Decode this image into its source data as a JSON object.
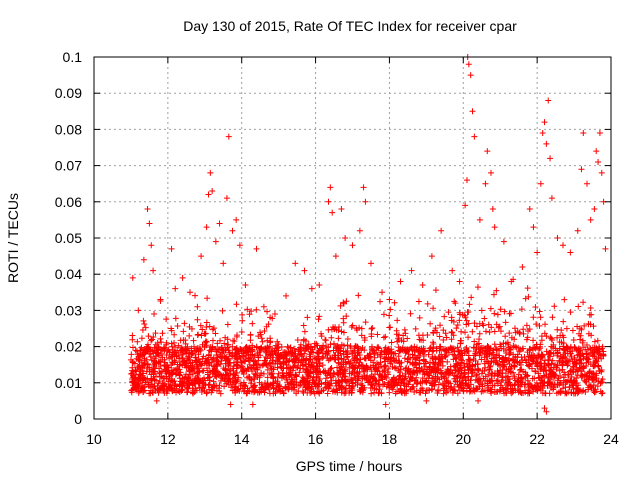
{
  "chart_data": {
    "type": "scatter",
    "title": "Day 130 of 2015, Rate Of TEC Index for receiver cpar",
    "xlabel": "GPS time / hours",
    "ylabel": "ROTI / TECUs",
    "xlim": [
      10,
      24
    ],
    "ylim": [
      0,
      0.1
    ],
    "x_ticks": [
      10,
      12,
      14,
      16,
      18,
      20,
      22,
      24
    ],
    "x_tick_labels": [
      "10",
      "12",
      "14",
      "16",
      "18",
      "20",
      "22",
      "24"
    ],
    "y_ticks": [
      0,
      0.01,
      0.02,
      0.03,
      0.04,
      0.05,
      0.06,
      0.07,
      0.08,
      0.09,
      0.1
    ],
    "y_tick_labels": [
      "0",
      "0.01",
      "0.02",
      "0.03",
      "0.04",
      "0.05",
      "0.06",
      "0.07",
      "0.08",
      "0.09",
      "0.1"
    ],
    "grid": true,
    "marker": "plus",
    "marker_color": "#ff0000",
    "series": [
      {
        "name": "ROTI",
        "points": [
          [
            11.05,
            0.039
          ],
          [
            11.2,
            0.03
          ],
          [
            11.35,
            0.044
          ],
          [
            11.45,
            0.058
          ],
          [
            11.5,
            0.054
          ],
          [
            11.55,
            0.048
          ],
          [
            11.6,
            0.041
          ],
          [
            11.8,
            0.033
          ],
          [
            12.1,
            0.047
          ],
          [
            12.2,
            0.036
          ],
          [
            12.4,
            0.039
          ],
          [
            12.6,
            0.035
          ],
          [
            12.8,
            0.031
          ],
          [
            12.9,
            0.045
          ],
          [
            13.05,
            0.053
          ],
          [
            13.1,
            0.062
          ],
          [
            13.15,
            0.068
          ],
          [
            13.2,
            0.063
          ],
          [
            13.3,
            0.049
          ],
          [
            13.4,
            0.054
          ],
          [
            13.5,
            0.043
          ],
          [
            13.6,
            0.061
          ],
          [
            13.65,
            0.078
          ],
          [
            13.75,
            0.052
          ],
          [
            13.85,
            0.055
          ],
          [
            13.95,
            0.048
          ],
          [
            14.1,
            0.037
          ],
          [
            14.4,
            0.047
          ],
          [
            14.6,
            0.031
          ],
          [
            14.9,
            0.029
          ],
          [
            15.2,
            0.034
          ],
          [
            15.45,
            0.043
          ],
          [
            15.7,
            0.041
          ],
          [
            15.9,
            0.036
          ],
          [
            16.1,
            0.037
          ],
          [
            16.35,
            0.06
          ],
          [
            16.4,
            0.064
          ],
          [
            16.45,
            0.057
          ],
          [
            16.55,
            0.045
          ],
          [
            16.7,
            0.058
          ],
          [
            16.8,
            0.05
          ],
          [
            17.0,
            0.048
          ],
          [
            17.2,
            0.052
          ],
          [
            17.3,
            0.064
          ],
          [
            17.35,
            0.06
          ],
          [
            17.5,
            0.043
          ],
          [
            17.8,
            0.035
          ],
          [
            18.0,
            0.033
          ],
          [
            18.3,
            0.038
          ],
          [
            18.6,
            0.041
          ],
          [
            18.9,
            0.037
          ],
          [
            19.15,
            0.045
          ],
          [
            19.4,
            0.052
          ],
          [
            19.7,
            0.041
          ],
          [
            19.9,
            0.038
          ],
          [
            20.05,
            0.059
          ],
          [
            20.1,
            0.066
          ],
          [
            20.12,
            0.1
          ],
          [
            20.15,
            0.098
          ],
          [
            20.2,
            0.095
          ],
          [
            20.25,
            0.085
          ],
          [
            20.3,
            0.078
          ],
          [
            20.45,
            0.055
          ],
          [
            20.6,
            0.065
          ],
          [
            20.65,
            0.074
          ],
          [
            20.75,
            0.068
          ],
          [
            20.8,
            0.058
          ],
          [
            20.85,
            0.053
          ],
          [
            21.1,
            0.049
          ],
          [
            21.3,
            0.038
          ],
          [
            21.6,
            0.042
          ],
          [
            21.8,
            0.058
          ],
          [
            21.9,
            0.053
          ],
          [
            22.0,
            0.046
          ],
          [
            22.1,
            0.065
          ],
          [
            22.15,
            0.079
          ],
          [
            22.2,
            0.082
          ],
          [
            22.25,
            0.076
          ],
          [
            22.3,
            0.088
          ],
          [
            22.35,
            0.072
          ],
          [
            22.4,
            0.061
          ],
          [
            22.55,
            0.05
          ],
          [
            22.7,
            0.048
          ],
          [
            22.9,
            0.046
          ],
          [
            23.1,
            0.052
          ],
          [
            23.2,
            0.069
          ],
          [
            23.25,
            0.079
          ],
          [
            23.35,
            0.065
          ],
          [
            23.45,
            0.055
          ],
          [
            23.55,
            0.058
          ],
          [
            23.6,
            0.074
          ],
          [
            23.65,
            0.071
          ],
          [
            23.7,
            0.079
          ],
          [
            23.75,
            0.068
          ],
          [
            23.8,
            0.06
          ],
          [
            23.85,
            0.047
          ],
          [
            22.2,
            0.003
          ],
          [
            22.25,
            0.002
          ],
          [
            13.7,
            0.004
          ],
          [
            14.3,
            0.004
          ],
          [
            11.7,
            0.005
          ],
          [
            17.9,
            0.004
          ],
          [
            20.4,
            0.005
          ],
          [
            19.0,
            0.005
          ]
        ]
      }
    ]
  }
}
